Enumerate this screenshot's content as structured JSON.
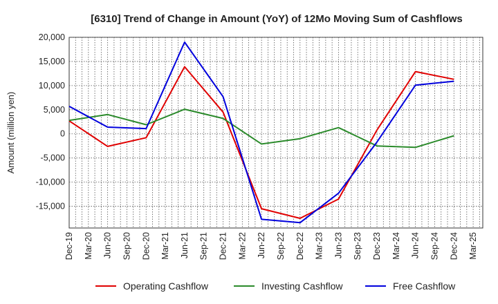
{
  "chart_data": {
    "type": "line",
    "title": "[6310]  Trend of Change in Amount (YoY) of 12Mo Moving Sum of Cashflows",
    "xlabel": "",
    "ylabel": "Amount (million yen)",
    "ylim": [
      -19500,
      20000
    ],
    "yticks": [
      20000,
      15000,
      10000,
      5000,
      0,
      -5000,
      -10000,
      -15000
    ],
    "ytick_labels": [
      "20,000",
      "15,000",
      "10,000",
      "5,000",
      "0",
      "-5,000",
      "-10,000",
      "-15,000"
    ],
    "categories": [
      "Dec-19",
      "Mar-20",
      "Jun-20",
      "Sep-20",
      "Dec-20",
      "Mar-21",
      "Jun-21",
      "Sep-21",
      "Dec-21",
      "Mar-22",
      "Jun-22",
      "Sep-22",
      "Dec-22",
      "Mar-23",
      "Jun-23",
      "Sep-23",
      "Dec-23",
      "Mar-24",
      "Jun-24",
      "Sep-24",
      "Dec-24",
      "Mar-25"
    ],
    "grid": true,
    "legend_position": "bottom",
    "series": [
      {
        "name": "Operating Cashflow",
        "color": "#e00000",
        "values": [
          2700,
          null,
          -2600,
          null,
          -800,
          null,
          13900,
          null,
          4500,
          null,
          -15500,
          null,
          -17500,
          null,
          -13500,
          null,
          800,
          null,
          12900,
          null,
          11300,
          null
        ]
      },
      {
        "name": "Investing Cashflow",
        "color": "#2a8a2a",
        "values": [
          2800,
          null,
          4000,
          null,
          1900,
          null,
          5100,
          null,
          3200,
          null,
          -2100,
          null,
          -1000,
          null,
          1300,
          null,
          -2500,
          null,
          -2800,
          null,
          -400,
          null
        ]
      },
      {
        "name": "Free Cashflow",
        "color": "#0000dd",
        "values": [
          5700,
          null,
          1400,
          null,
          1100,
          null,
          19000,
          null,
          7700,
          null,
          -17700,
          null,
          -18400,
          null,
          -12300,
          null,
          -1700,
          null,
          10100,
          null,
          10900,
          null
        ]
      }
    ]
  }
}
